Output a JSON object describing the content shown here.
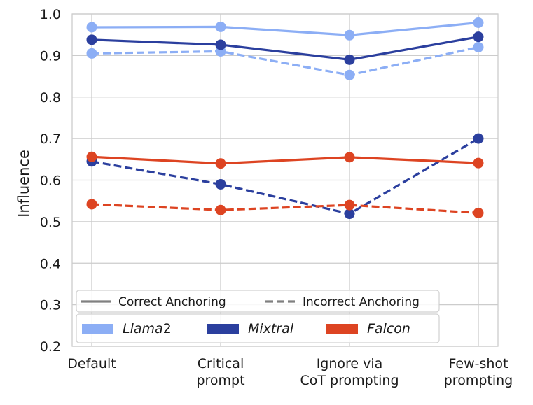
{
  "chart_data": {
    "type": "line",
    "title": "",
    "xlabel": "",
    "ylabel": "Influence",
    "ylim": [
      0.2,
      1.0
    ],
    "yticks": [
      "0.2",
      "0.3",
      "0.4",
      "0.5",
      "0.6",
      "0.7",
      "0.8",
      "0.9",
      "1.0"
    ],
    "categories": [
      [
        "Default"
      ],
      [
        "Critical",
        "prompt"
      ],
      [
        "Ignore via",
        "CoT prompting"
      ],
      [
        "Few-shot",
        "prompting"
      ]
    ],
    "line_styles": [
      {
        "name": "Correct Anchoring",
        "dashed": false
      },
      {
        "name": "Incorrect Anchoring",
        "dashed": true
      }
    ],
    "models": [
      {
        "name": "Llama",
        "suffix": "2",
        "color": "#8caef5"
      },
      {
        "name": "Mixtral",
        "suffix": "",
        "color": "#2b3f9e"
      },
      {
        "name": "Falcon",
        "suffix": "",
        "color": "#dd4422"
      }
    ],
    "series": [
      {
        "name": "Llama2 - Correct Anchoring",
        "model": 0,
        "dashed": false,
        "values": [
          0.968,
          0.969,
          0.949,
          0.979
        ]
      },
      {
        "name": "Llama2 - Incorrect Anchoring",
        "model": 0,
        "dashed": true,
        "values": [
          0.905,
          0.91,
          0.853,
          0.92
        ]
      },
      {
        "name": "Mixtral - Correct Anchoring",
        "model": 1,
        "dashed": false,
        "values": [
          0.938,
          0.926,
          0.89,
          0.945
        ]
      },
      {
        "name": "Mixtral - Incorrect Anchoring",
        "model": 1,
        "dashed": true,
        "values": [
          0.645,
          0.59,
          0.519,
          0.7
        ]
      },
      {
        "name": "Falcon - Correct Anchoring",
        "model": 2,
        "dashed": false,
        "values": [
          0.656,
          0.64,
          0.655,
          0.641
        ]
      },
      {
        "name": "Falcon - Incorrect Anchoring",
        "model": 2,
        "dashed": true,
        "values": [
          0.542,
          0.528,
          0.54,
          0.521
        ]
      }
    ],
    "legend_position": "lower-left",
    "grid": true
  }
}
